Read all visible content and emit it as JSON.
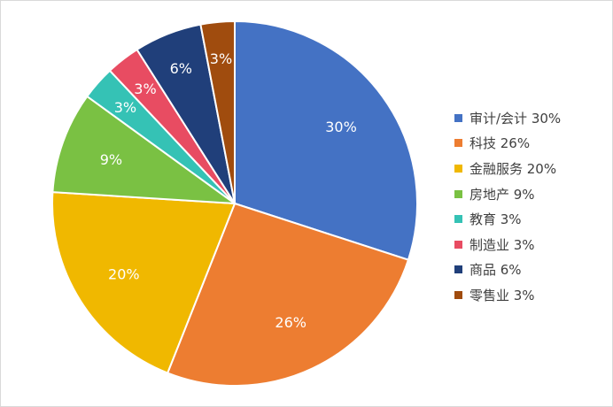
{
  "chart_data": {
    "type": "pie",
    "title": "",
    "legend_position": "right",
    "slices": [
      {
        "label": "审计/会计",
        "value": 30,
        "color": "#4472C4",
        "data_label": "30%",
        "legend_label": "审计/会计 30%"
      },
      {
        "label": "科技",
        "value": 26,
        "color": "#ED7D31",
        "data_label": "26%",
        "legend_label": "科技 26%"
      },
      {
        "label": "金融服务",
        "value": 20,
        "color": "#F0B800",
        "data_label": "20%",
        "legend_label": "金融服务 20%"
      },
      {
        "label": "房地产",
        "value": 9,
        "color": "#7AC143",
        "data_label": "9%",
        "legend_label": "房地产 9%"
      },
      {
        "label": "教育",
        "value": 3,
        "color": "#35C2B5",
        "data_label": "3%",
        "legend_label": "教育 3%"
      },
      {
        "label": "制造业",
        "value": 3,
        "color": "#E84C62",
        "data_label": "3%",
        "legend_label": "制造业 3%"
      },
      {
        "label": "商品",
        "value": 6,
        "color": "#203F7A",
        "data_label": "6%",
        "legend_label": "商品 6%"
      },
      {
        "label": "零售业",
        "value": 3,
        "color": "#A04C0E",
        "data_label": "3%",
        "legend_label": "零售业 3%"
      }
    ]
  }
}
